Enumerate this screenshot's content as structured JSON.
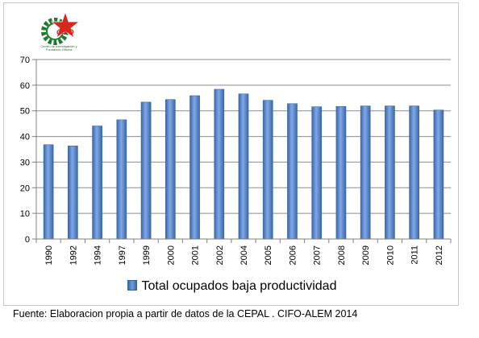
{
  "logo": {
    "name": "CIFO",
    "subtitle": "Centro de Investigación y Formación Obrera",
    "colors": {
      "gear": "#1e7a2e",
      "star": "#d8271e"
    }
  },
  "chart_data": {
    "type": "bar",
    "categories": [
      "1990",
      "1992",
      "1994",
      "1997",
      "1999",
      "2000",
      "2001",
      "2002",
      "2004",
      "2005",
      "2006",
      "2007",
      "2008",
      "2009",
      "2010",
      "2011",
      "2012"
    ],
    "series": [
      {
        "name": "Total ocupados baja productividad",
        "values": [
          36.8,
          36.3,
          44.1,
          46.5,
          53.4,
          54.4,
          55.9,
          58.4,
          56.6,
          54.1,
          52.8,
          51.6,
          51.7,
          51.9,
          51.9,
          51.9,
          50.3
        ]
      }
    ],
    "ylim": [
      0,
      70
    ],
    "yticks": [
      0,
      10,
      20,
      30,
      40,
      50,
      60,
      70
    ],
    "grid": true,
    "legend_position": "bottom",
    "colors": {
      "bar": "#4f81c8",
      "bar_dark": "#3b66a8",
      "bar_light": "#7fa8e6",
      "grid": "#8c8c8c"
    }
  },
  "footer": {
    "source": "Fuente: Elaboracion propia a partir de datos de la CEPAL . CIFO-ALEM 2014"
  }
}
